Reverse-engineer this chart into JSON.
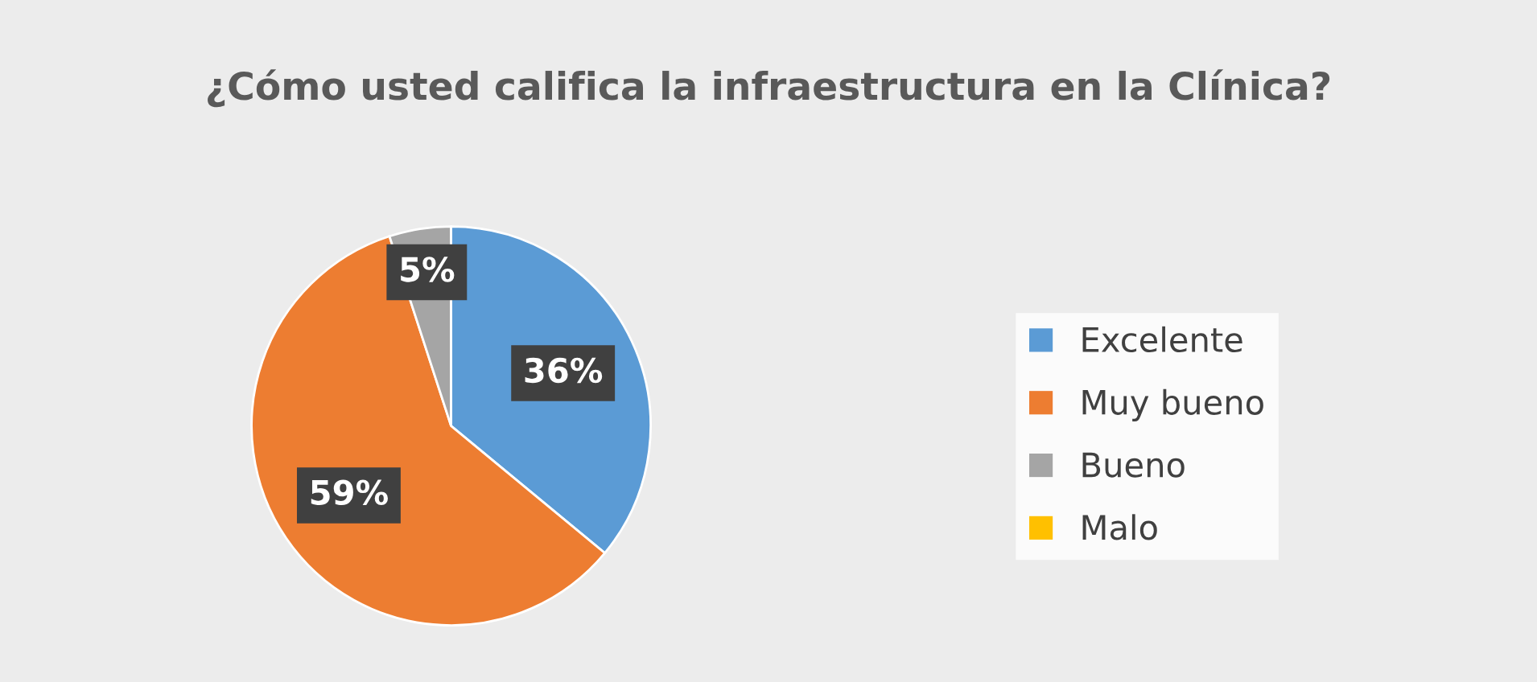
{
  "chart_data": {
    "type": "pie",
    "title": "¿Cómo usted califica la infraestructura en la Clínica?",
    "categories": [
      "Excelente",
      "Muy bueno",
      "Bueno",
      "Malo"
    ],
    "values": [
      36,
      59,
      5,
      0
    ],
    "colors": [
      "#5b9bd5",
      "#ed7d31",
      "#a5a5a5",
      "#ffc000"
    ],
    "value_labels": [
      "36%",
      "59%",
      "5%",
      null
    ],
    "legend": "right"
  }
}
